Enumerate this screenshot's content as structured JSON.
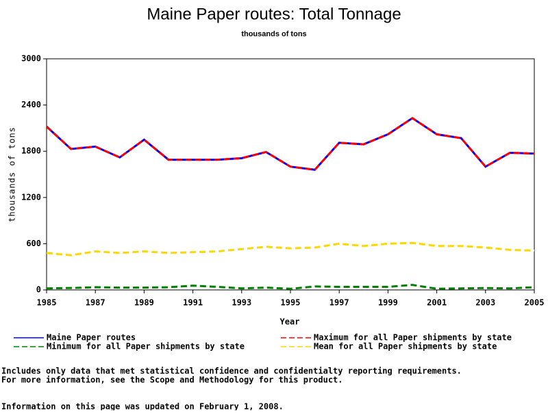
{
  "chart_data": {
    "type": "line",
    "title": "Maine Paper routes: Total Tonnage",
    "subtitle": "thousands of tons",
    "xlabel": "Year",
    "ylabel": "thousands of tons",
    "x": [
      1985,
      1986,
      1987,
      1988,
      1989,
      1990,
      1991,
      1992,
      1993,
      1994,
      1995,
      1996,
      1997,
      1998,
      1999,
      2000,
      2001,
      2002,
      2003,
      2004,
      2005
    ],
    "series": [
      {
        "name": "Maine Paper routes",
        "color": "#0000ff",
        "dash": false,
        "values": [
          2120,
          1830,
          1860,
          1720,
          1950,
          1690,
          1690,
          1690,
          1710,
          1790,
          1600,
          1560,
          1910,
          1890,
          2020,
          2230,
          2020,
          1970,
          1600,
          1780,
          1770
        ]
      },
      {
        "name": "Maximum for all Paper shipments by state",
        "color": "#ff0000",
        "dash": true,
        "values": [
          2120,
          1830,
          1860,
          1720,
          1950,
          1690,
          1690,
          1690,
          1710,
          1790,
          1600,
          1560,
          1910,
          1890,
          2020,
          2230,
          2020,
          1970,
          1600,
          1780,
          1770
        ]
      },
      {
        "name": "Minimum for all Paper shipments by state",
        "color": "#008000",
        "dash": true,
        "values": [
          20,
          25,
          35,
          30,
          30,
          35,
          55,
          40,
          20,
          30,
          15,
          45,
          40,
          40,
          40,
          65,
          15,
          20,
          25,
          20,
          35
        ]
      },
      {
        "name": "Mean for all Paper shipments by state",
        "color": "#ffd700",
        "dash": true,
        "values": [
          480,
          450,
          500,
          480,
          500,
          480,
          490,
          500,
          530,
          560,
          540,
          550,
          600,
          570,
          600,
          610,
          570,
          570,
          550,
          520,
          510
        ]
      }
    ],
    "xlim": [
      1985,
      2005
    ],
    "xticks": [
      1985,
      1987,
      1989,
      1991,
      1993,
      1995,
      1997,
      1999,
      2001,
      2003,
      2005
    ],
    "ylim": [
      0,
      3000
    ],
    "yticks": [
      0,
      600,
      1200,
      1800,
      2400,
      3000
    ]
  },
  "notes": [
    "Includes only data that met statistical confidence and confidentialty reporting requirements.",
    "For more information, see the Scope and Methodology for this product.",
    "Information on this page was updated on February 1, 2008."
  ]
}
